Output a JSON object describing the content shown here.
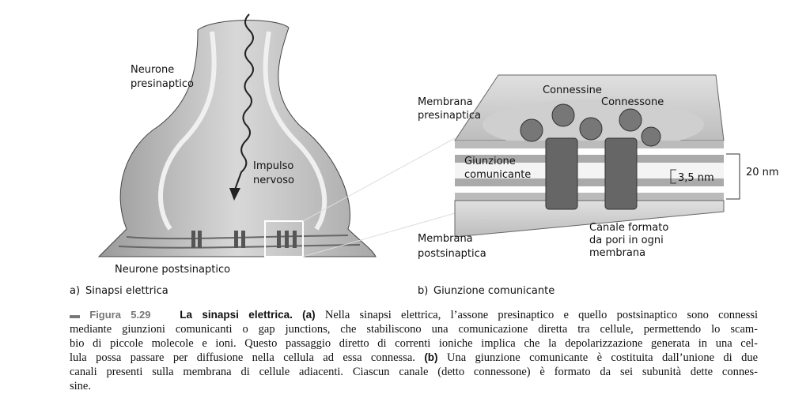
{
  "panel_a": {
    "presynaptic_label": [
      "Neurone",
      "presinaptico"
    ],
    "impulse_label": [
      "Impulso",
      "nervoso"
    ],
    "postsynaptic_label": "Neurone postsinaptico",
    "letter": "a)",
    "title": "Sinapsi elettrica"
  },
  "panel_b": {
    "connexins_label": "Connessine",
    "connexon_label": "Connessone",
    "presynaptic_membrane_label": [
      "Membrana",
      "presinaptica"
    ],
    "junction_label": [
      "Giunzione",
      "comunicante"
    ],
    "gap_label": "3,5 nm",
    "width_label": "20 nm",
    "channel_label": [
      "Canale formato",
      "da pori in ogni",
      "membrana"
    ],
    "postsynaptic_membrane_label": [
      "Membrana",
      "postsinaptica"
    ],
    "letter": "b)",
    "title": "Giunzione comunicante"
  },
  "caption": {
    "label": "Figura 5.29",
    "title": "La sinapsi elettrica.",
    "lines": [
      [
        "(a)",
        "Nella sinapsi elettrica, l’assone presinaptico e quello postsinaptico sono connessi"
      ],
      [
        "mediante giunzioni comunicanti o gap junctions, che stabiliscono una comunicazione diretta tra cellule, permettendo lo scam-"
      ],
      [
        "bio di piccole molecole e ioni. Questo passaggio diretto di correnti ioniche implica che la depolarizzazione generata in una cel-"
      ],
      [
        "lula possa passare per diffusione nella cellula ad essa connessa.",
        "(b)",
        "Una giunzione comunicante è costituita dall’unione di due"
      ],
      [
        "canali presenti sulla membrana di cellule adiacenti. Ciascun canale (detto connessone) è formato da sei subunità dette connes-"
      ],
      [
        "sine."
      ]
    ]
  }
}
